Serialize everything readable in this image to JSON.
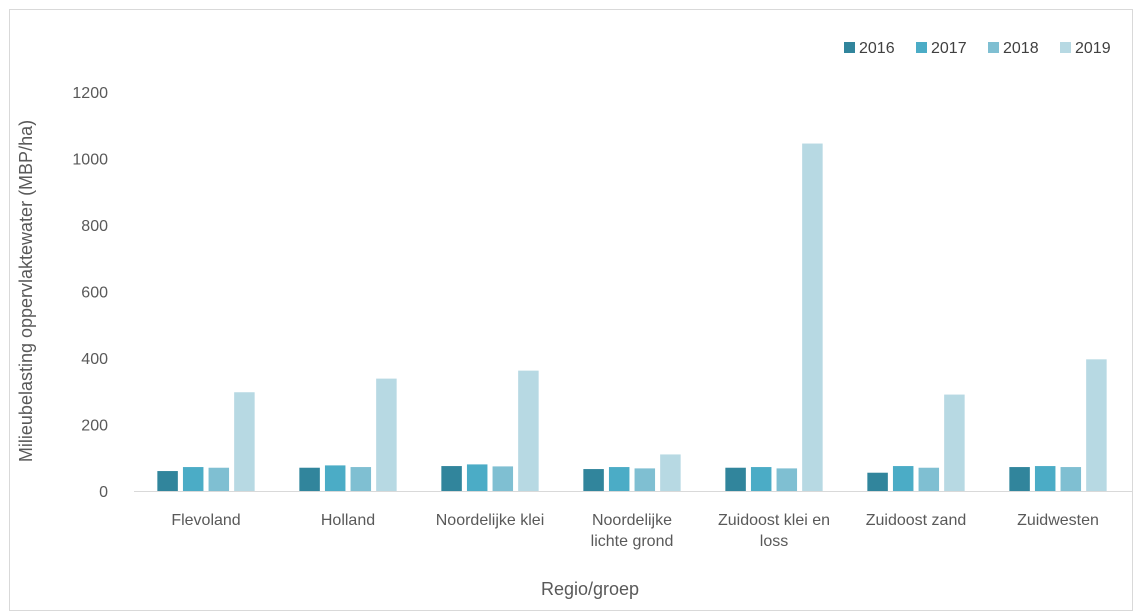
{
  "chart_data": {
    "type": "bar",
    "title": "",
    "xlabel": "Regio/groep",
    "ylabel": "Milieubelasting oppervlaktewater (MBP/ha)",
    "ylim": [
      0,
      1200
    ],
    "yticks": [
      0,
      200,
      400,
      600,
      800,
      1000,
      1200
    ],
    "grid": false,
    "legend_position": "top-right",
    "categories": [
      [
        "Flevoland"
      ],
      [
        "Holland"
      ],
      [
        "Noordelijke klei"
      ],
      [
        "Noordelijke",
        "lichte grond"
      ],
      [
        "Zuidoost klei en",
        "loss"
      ],
      [
        "Zuidoost zand"
      ],
      [
        "Zuidwesten"
      ]
    ],
    "series": [
      {
        "name": "2016",
        "color": "#31859c",
        "values": [
          60,
          70,
          75,
          66,
          70,
          55,
          72
        ]
      },
      {
        "name": "2017",
        "color": "#4bacc6",
        "values": [
          72,
          77,
          80,
          72,
          72,
          75,
          75
        ]
      },
      {
        "name": "2018",
        "color": "#7fbfd2",
        "values": [
          70,
          72,
          74,
          68,
          68,
          70,
          72
        ]
      },
      {
        "name": "2019",
        "color": "#b7d9e3",
        "values": [
          297,
          338,
          362,
          110,
          1045,
          290,
          396
        ]
      }
    ]
  }
}
